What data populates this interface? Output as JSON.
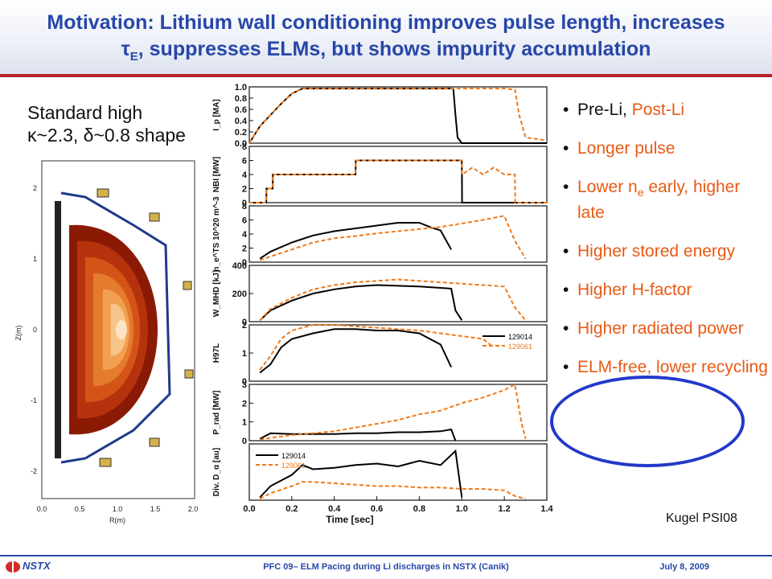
{
  "slide": {
    "title_line1": "Motivation: Lithium wall conditioning improves pulse length, increases",
    "title_tau": "τ",
    "title_tau_sub": "E",
    "title_line2_rest": ", suppresses ELMs, but shows impurity accumulation",
    "shape_caption_line1": "Standard high",
    "shape_caption_line2": "κ~2.3, δ~0.8 shape",
    "citation": "Kugel PSI08"
  },
  "bullets": [
    {
      "before": "Pre-Li, ",
      "highlight": "Post-Li",
      "after": ""
    },
    {
      "text": "Longer pulse"
    },
    {
      "text_a": "Lower n",
      "text_sub": "e",
      "text_b": " early, higher late"
    },
    {
      "text": "Higher stored energy"
    },
    {
      "text": "Higher H-factor"
    },
    {
      "text": "Higher radiated power"
    },
    {
      "text": "ELM-free, lower recycling"
    }
  ],
  "footer": {
    "logo_text": "NSTX",
    "center_text": "PFC 09– ELM Pacing during Li discharges in NSTX (Canik)",
    "date": "July 8, 2009"
  },
  "colors": {
    "pre_li": "#000000",
    "post_li": "#f07a1a",
    "title": "#2747a8",
    "accent_rule": "#b42525",
    "circle": "#2339c9"
  },
  "reconstruction": {
    "x_ticks": [
      "0.0",
      "0.5",
      "1.0",
      "1.5",
      "2.0"
    ],
    "y_ticks": [
      "2",
      "1",
      "0",
      "-1",
      "-2"
    ],
    "xlabel": "R(m)",
    "ylabel": "Z(m)"
  },
  "chart_data": {
    "type": "line",
    "xlabel": "Time [sec]",
    "x_ticks": [
      "0.0",
      "0.2",
      "0.4",
      "0.6",
      "0.8",
      "1.0",
      "1.2",
      "1.4"
    ],
    "xlim": [
      0,
      1.4
    ],
    "panels": [
      {
        "ylabel": "I_p [MA]",
        "ylim": [
          0,
          1.0
        ],
        "y_ticks": [
          "0.0",
          "0.2",
          "0.4",
          "0.6",
          "0.8",
          "1.0"
        ],
        "series": [
          {
            "style": "pre",
            "x": [
              0,
              0.05,
              0.1,
              0.15,
              0.2,
              0.25,
              0.4,
              0.6,
              0.8,
              0.96,
              0.97,
              0.98,
              1.0,
              1.2,
              1.4
            ],
            "y": [
              0,
              0.3,
              0.5,
              0.7,
              0.88,
              0.97,
              0.97,
              0.97,
              0.97,
              0.97,
              0.5,
              0.1,
              0.0,
              0.0,
              0.0
            ]
          },
          {
            "style": "post",
            "x": [
              0,
              0.05,
              0.1,
              0.15,
              0.2,
              0.25,
              0.4,
              0.6,
              0.8,
              1.0,
              1.2,
              1.25,
              1.27,
              1.3,
              1.4
            ],
            "y": [
              0,
              0.3,
              0.5,
              0.7,
              0.88,
              0.97,
              0.97,
              0.97,
              0.97,
              0.97,
              0.97,
              0.95,
              0.5,
              0.1,
              0.05
            ]
          }
        ]
      },
      {
        "ylabel": "NBI [MW]",
        "ylim": [
          0,
          8
        ],
        "y_ticks": [
          "0",
          "2",
          "4",
          "6",
          "8"
        ],
        "series": [
          {
            "style": "pre",
            "x": [
              0,
              0.08,
              0.081,
              0.11,
              0.111,
              0.5,
              0.501,
              1.0,
              1.001,
              1.4
            ],
            "y": [
              0,
              0,
              2,
              2,
              4,
              4,
              6,
              6,
              0,
              0
            ]
          },
          {
            "style": "post",
            "x": [
              0,
              0.08,
              0.081,
              0.11,
              0.111,
              0.5,
              0.501,
              1.0,
              1.001,
              1.05,
              1.1,
              1.15,
              1.2,
              1.25,
              1.251,
              1.4
            ],
            "y": [
              0,
              0,
              2,
              2,
              4,
              4,
              6,
              6,
              4,
              5,
              4,
              5,
              4,
              4,
              0,
              0
            ]
          }
        ]
      },
      {
        "ylabel": "n_e^TS 10^20 m^-3",
        "ylim": [
          0,
          8
        ],
        "y_ticks": [
          "0",
          "2",
          "4",
          "6",
          "8"
        ],
        "series": [
          {
            "style": "pre",
            "x": [
              0.05,
              0.1,
              0.2,
              0.3,
              0.4,
              0.5,
              0.6,
              0.7,
              0.8,
              0.85,
              0.9,
              0.95
            ],
            "y": [
              0.5,
              1.5,
              2.8,
              3.8,
              4.4,
              4.8,
              5.2,
              5.6,
              5.6,
              5.0,
              4.5,
              1.8
            ]
          },
          {
            "style": "post",
            "x": [
              0.05,
              0.1,
              0.2,
              0.3,
              0.4,
              0.5,
              0.6,
              0.7,
              0.8,
              0.9,
              1.0,
              1.1,
              1.2,
              1.25,
              1.3
            ],
            "y": [
              0.3,
              0.8,
              1.8,
              2.8,
              3.4,
              3.7,
              4.1,
              4.4,
              4.7,
              5.0,
              5.5,
              6.0,
              6.6,
              3.0,
              0.5
            ]
          }
        ]
      },
      {
        "ylabel": "W_MHD [kJ]",
        "ylim": [
          0,
          400
        ],
        "y_ticks": [
          "0",
          "200",
          "400"
        ],
        "series": [
          {
            "style": "pre",
            "x": [
              0.05,
              0.1,
              0.2,
              0.3,
              0.4,
              0.5,
              0.6,
              0.7,
              0.8,
              0.9,
              0.95,
              0.97,
              1.0
            ],
            "y": [
              10,
              80,
              150,
              200,
              230,
              250,
              260,
              255,
              250,
              240,
              235,
              80,
              10
            ]
          },
          {
            "style": "post",
            "x": [
              0.05,
              0.1,
              0.2,
              0.3,
              0.4,
              0.5,
              0.6,
              0.7,
              0.8,
              0.9,
              1.0,
              1.1,
              1.2,
              1.25,
              1.3
            ],
            "y": [
              10,
              90,
              170,
              230,
              260,
              280,
              290,
              300,
              290,
              280,
              270,
              260,
              250,
              100,
              10
            ]
          }
        ]
      },
      {
        "ylabel": "H97L",
        "ylim": [
          0,
          2
        ],
        "y_ticks": [
          "0",
          "1",
          "2"
        ],
        "legend": [
          {
            "label": "129014",
            "style": "pre"
          },
          {
            "label": "129061",
            "style": "post"
          }
        ],
        "series": [
          {
            "style": "pre",
            "x": [
              0.05,
              0.1,
              0.15,
              0.2,
              0.3,
              0.4,
              0.5,
              0.6,
              0.7,
              0.8,
              0.9,
              0.95
            ],
            "y": [
              0.3,
              0.6,
              1.2,
              1.5,
              1.7,
              1.85,
              1.85,
              1.8,
              1.8,
              1.7,
              1.3,
              0.5
            ]
          },
          {
            "style": "post",
            "x": [
              0.05,
              0.1,
              0.15,
              0.2,
              0.3,
              0.4,
              0.5,
              0.6,
              0.7,
              0.8,
              0.9,
              1.0,
              1.1,
              1.15
            ],
            "y": [
              0.4,
              0.9,
              1.5,
              1.8,
              2.0,
              2.0,
              1.95,
              1.9,
              1.85,
              1.8,
              1.7,
              1.6,
              1.5,
              1.2
            ]
          }
        ]
      },
      {
        "ylabel": "P_rad [MW]",
        "ylim": [
          0,
          3
        ],
        "y_ticks": [
          "0",
          "1",
          "2",
          "3"
        ],
        "series": [
          {
            "style": "pre",
            "x": [
              0.05,
              0.1,
              0.2,
              0.3,
              0.4,
              0.5,
              0.6,
              0.7,
              0.8,
              0.9,
              0.95,
              0.97
            ],
            "y": [
              0.1,
              0.4,
              0.35,
              0.35,
              0.35,
              0.4,
              0.4,
              0.45,
              0.45,
              0.5,
              0.6,
              0.0
            ]
          },
          {
            "style": "post",
            "x": [
              0.05,
              0.1,
              0.2,
              0.3,
              0.4,
              0.5,
              0.6,
              0.7,
              0.8,
              0.9,
              1.0,
              1.1,
              1.2,
              1.25,
              1.28,
              1.3
            ],
            "y": [
              0.05,
              0.15,
              0.3,
              0.4,
              0.5,
              0.7,
              0.9,
              1.1,
              1.4,
              1.6,
              2.0,
              2.3,
              2.7,
              3.0,
              1.0,
              0.1
            ]
          }
        ]
      },
      {
        "ylabel": "Div. D_α [au]",
        "ylim": [
          0,
          4
        ],
        "y_ticks": [],
        "legend": [
          {
            "label": "129014",
            "style": "pre"
          },
          {
            "label": "129061",
            "style": "post"
          }
        ],
        "series": [
          {
            "style": "pre",
            "x": [
              0.05,
              0.1,
              0.2,
              0.25,
              0.3,
              0.4,
              0.5,
              0.6,
              0.7,
              0.8,
              0.9,
              0.97,
              1.0
            ],
            "y": [
              0.2,
              1.0,
              1.8,
              2.5,
              2.2,
              2.3,
              2.5,
              2.6,
              2.4,
              2.8,
              2.5,
              3.5,
              0.2
            ]
          },
          {
            "style": "post",
            "x": [
              0.05,
              0.1,
              0.2,
              0.25,
              0.3,
              0.4,
              0.5,
              0.6,
              0.7,
              0.8,
              0.9,
              1.0,
              1.1,
              1.2,
              1.25,
              1.3
            ],
            "y": [
              0.1,
              0.5,
              1.0,
              1.3,
              1.3,
              1.2,
              1.1,
              1.0,
              1.0,
              0.9,
              0.9,
              0.8,
              0.8,
              0.7,
              0.3,
              0.1
            ]
          }
        ]
      }
    ]
  }
}
